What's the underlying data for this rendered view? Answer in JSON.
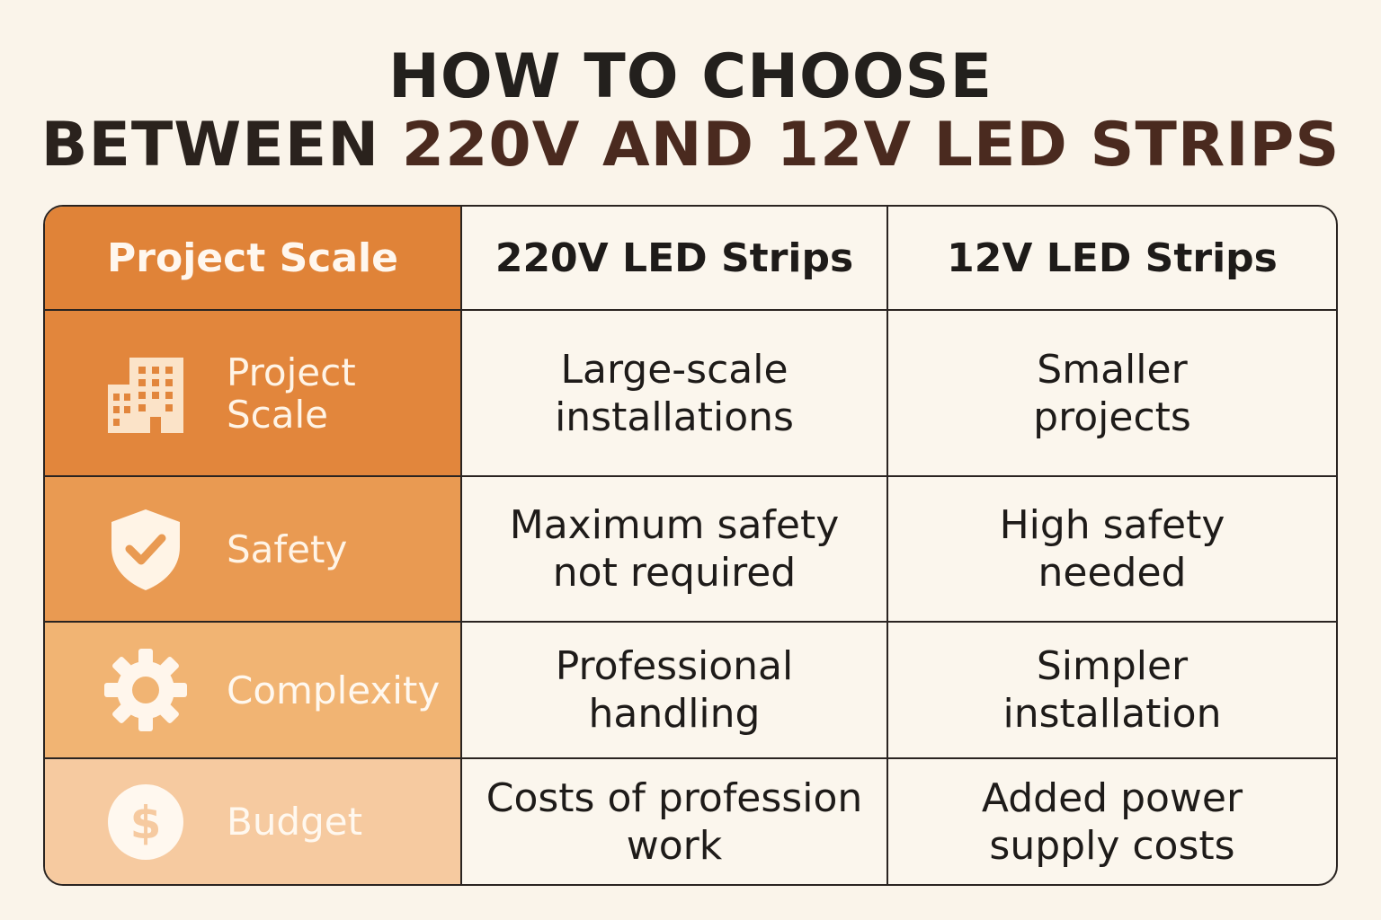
{
  "title": {
    "line1": "HOW TO CHOOSE",
    "line2_part1": "BETWEEN ",
    "line2_part2": "220V AND 12V LED STRIPS"
  },
  "table": {
    "headers": [
      "Project Scale",
      "220V LED Strips",
      "12V LED Strips"
    ],
    "rows": [
      {
        "label_line1": "Project",
        "label_line2": "Scale",
        "icon": "building-icon",
        "v220_line1": "Large-scale",
        "v220_line2": "installations",
        "v12_line1": "Smaller",
        "v12_line2": "projects"
      },
      {
        "label_line1": "Safety",
        "icon": "shield-check-icon",
        "v220_line1": "Maximum safety",
        "v220_line2": "not required",
        "v12_line1": "High safety",
        "v12_line2": "needed"
      },
      {
        "label_line1": "Complexity",
        "icon": "gear-icon",
        "v220_line1": "Professional",
        "v220_line2": "handling",
        "v12_line1": "Simpler",
        "v12_line2": "installation"
      },
      {
        "label_line1": "Budget",
        "icon": "dollar-coin-icon",
        "v220_line1": "Costs of profession",
        "v220_line2": "work",
        "v12_line1": "Added power",
        "v12_line2": "supply costs"
      }
    ]
  },
  "colors": {
    "header_orange": "#e08338",
    "row1": "#e2863c",
    "row2": "#e99a52",
    "row3": "#f1b473",
    "row4": "#f6caa0",
    "background": "#faf4ea"
  }
}
